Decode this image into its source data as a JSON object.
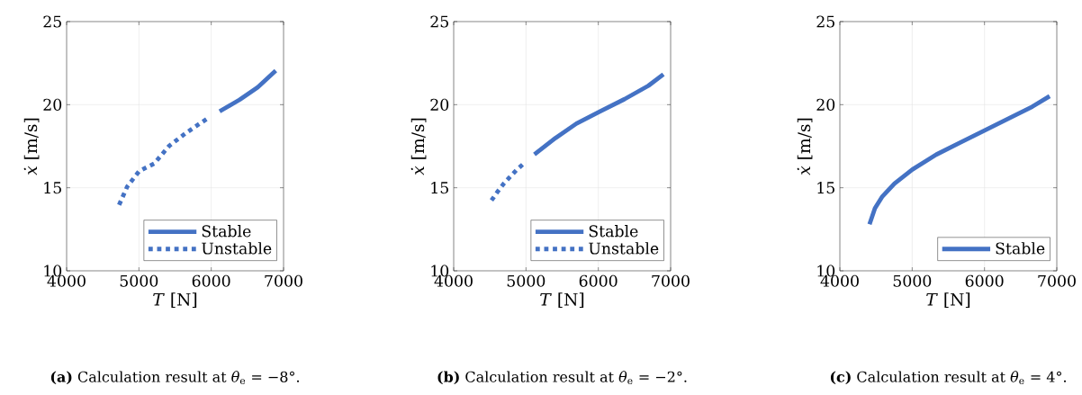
{
  "chart_data": [
    {
      "type": "line",
      "title": "**(a)** Calculation result at *θ*$_{e}$ = −8°.",
      "xlabel": "*T* [N]",
      "ylabel": "*ẋ* [m/s]",
      "xlim": [
        4000,
        7000
      ],
      "ylim": [
        10,
        25
      ],
      "xticks": [
        4000,
        5000,
        6000,
        7000
      ],
      "yticks": [
        10,
        15,
        20,
        25
      ],
      "grid": true,
      "legend": "bottom right",
      "series": [
        {
          "name": "Stable",
          "color": "#4472c4",
          "line_style": "solid",
          "x": [
            6116,
            6394,
            6643,
            6892
          ],
          "values": [
            19.6,
            20.3,
            21.05,
            22.05
          ]
        },
        {
          "name": "Unstable",
          "color": "#4472c4",
          "line_style": "dotted",
          "x": [
            4726,
            4838,
            5004,
            5212,
            5419,
            5639,
            5855,
            5979
          ],
          "values": [
            13.97,
            15.07,
            16.0,
            16.46,
            17.52,
            18.26,
            18.9,
            19.25
          ]
        }
      ]
    },
    {
      "type": "line",
      "title": "**(b)** Calculation result at *θ*$_{e}$ = −2°.",
      "xlabel": "*T* [N]",
      "ylabel": "*ẋ* [m/s]",
      "xlim": [
        4000,
        7000
      ],
      "ylim": [
        10,
        25
      ],
      "xticks": [
        4000,
        5000,
        6000,
        7000
      ],
      "yticks": [
        10,
        15,
        20,
        25
      ],
      "grid": true,
      "legend": "bottom right",
      "series": [
        {
          "name": "Stable",
          "color": "#4472c4",
          "line_style": "solid",
          "x": [
            5116,
            5407,
            5697,
            6029,
            6361,
            6693,
            6900
          ],
          "values": [
            17.0,
            17.99,
            18.86,
            19.61,
            20.33,
            21.14,
            21.83
          ]
        },
        {
          "name": "Unstable",
          "color": "#4472c4",
          "line_style": "dotted",
          "x": [
            4523,
            4610,
            4693,
            4784,
            4876,
            4983
          ],
          "values": [
            14.24,
            14.78,
            15.25,
            15.68,
            16.1,
            16.51
          ]
        }
      ]
    },
    {
      "type": "line",
      "title": "**(c)** Calculation result at *θ*$_{e}$ = 4°.",
      "xlabel": "*T* [N]",
      "ylabel": "*ẋ* [m/s]",
      "xlim": [
        4000,
        7000
      ],
      "ylim": [
        10,
        25
      ],
      "xticks": [
        4000,
        5000,
        6000,
        7000
      ],
      "yticks": [
        10,
        15,
        20,
        25
      ],
      "grid": true,
      "legend": "bottom right",
      "series": [
        {
          "name": "Stable",
          "color": "#4472c4",
          "line_style": "solid",
          "x": [
            4410,
            4485,
            4588,
            4754,
            5003,
            5334,
            5666,
            5998,
            6329,
            6661,
            6901
          ],
          "values": [
            12.8,
            13.76,
            14.48,
            15.25,
            16.1,
            17.0,
            17.72,
            18.44,
            19.16,
            19.88,
            20.51
          ]
        }
      ]
    }
  ]
}
